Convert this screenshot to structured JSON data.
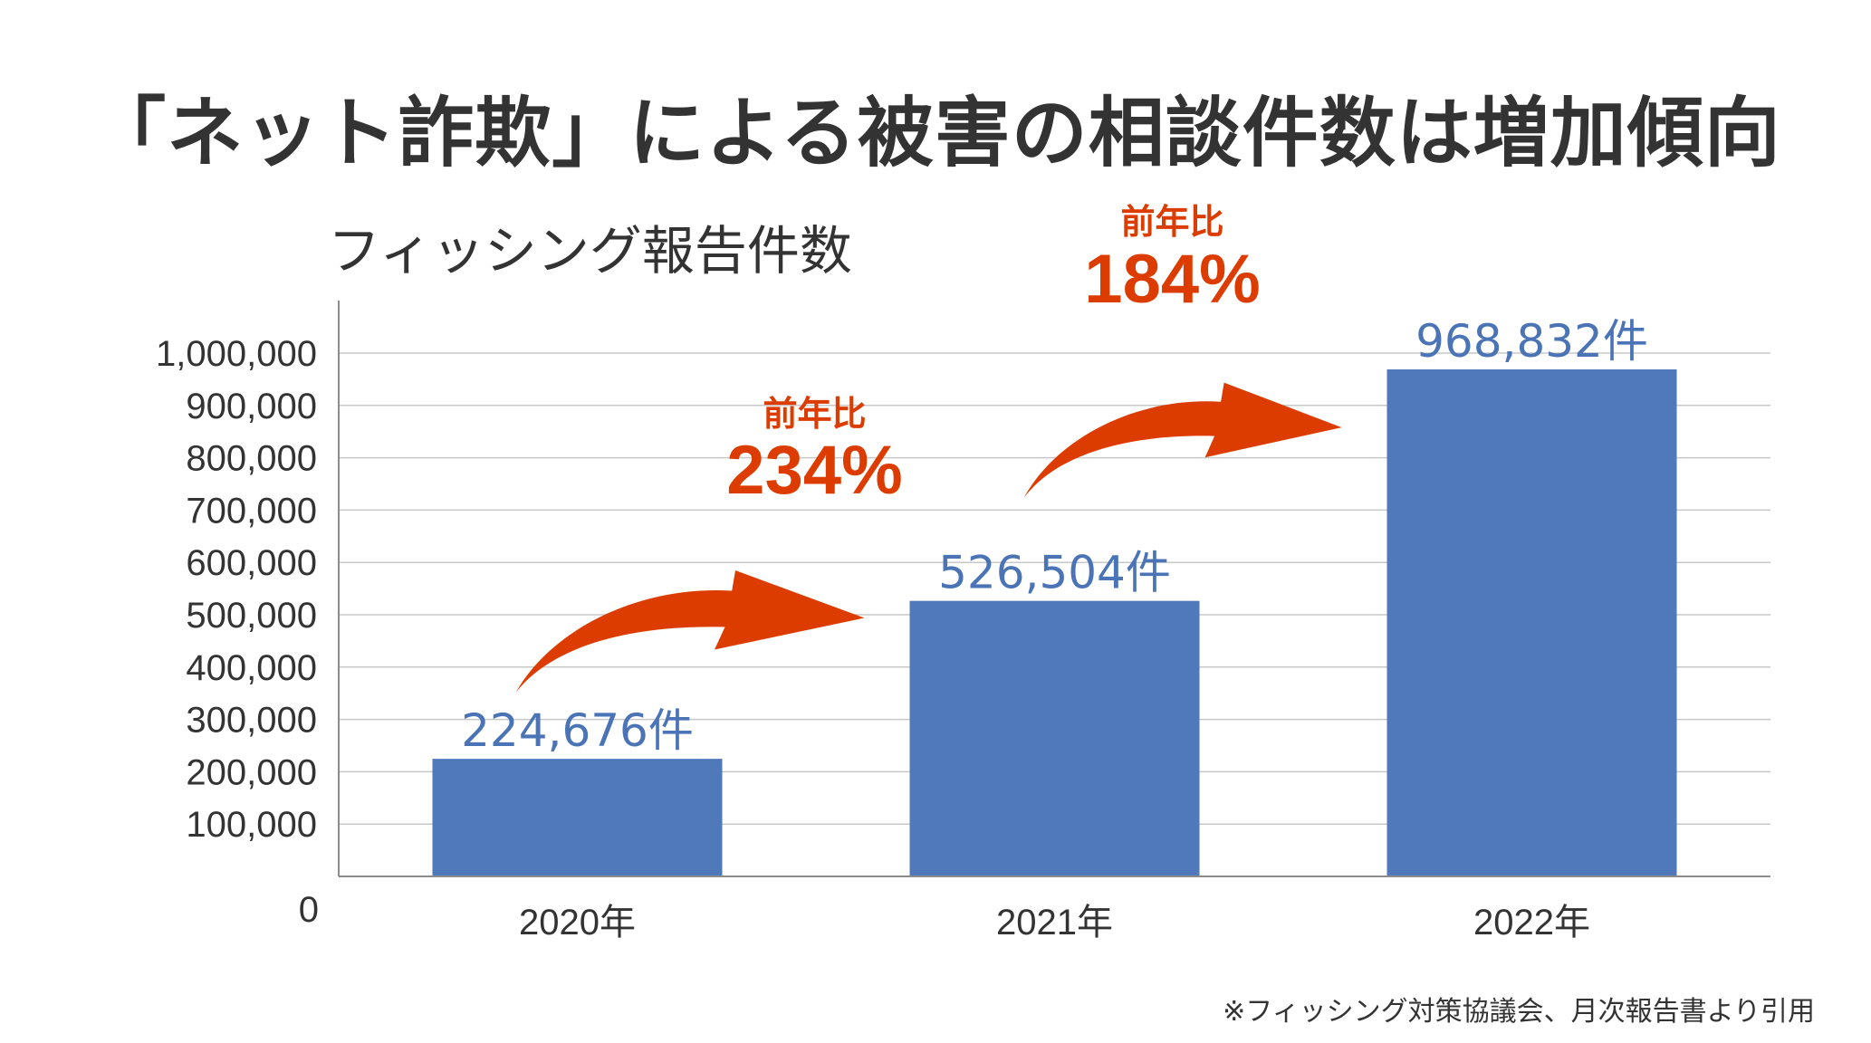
{
  "title": "「ネット詐欺」による被害の相談件数は増加傾向",
  "source": "※フィッシング対策協議会、月次報告書より引用",
  "colors": {
    "bar": "#4f79bb",
    "data_label": "#4a74b6",
    "accent": "#dd3c00",
    "grid": "#c8c8c8",
    "axis": "#8c8c8c",
    "text": "#333333"
  },
  "chart_data": {
    "type": "bar",
    "title": "フィッシング報告件数",
    "xlabel": "",
    "ylabel": "",
    "categories": [
      "2020年",
      "2021年",
      "2022年"
    ],
    "values": [
      224676,
      526504,
      968832
    ],
    "data_labels": [
      "224,676件",
      "526,504件",
      "968,832件"
    ],
    "ylim": [
      0,
      1000000
    ],
    "yticks": [
      0,
      100000,
      200000,
      300000,
      400000,
      500000,
      600000,
      700000,
      800000,
      900000,
      1000000
    ],
    "ytick_labels": [
      "0",
      "100,000",
      "200,000",
      "300,000",
      "400,000",
      "500,000",
      "600,000",
      "700,000",
      "800,000",
      "900,000",
      "1,000,000"
    ],
    "grid": true,
    "legend": "none",
    "annotations": [
      {
        "from": "2020年",
        "to": "2021年",
        "label": "前年比",
        "value": "234%"
      },
      {
        "from": "2021年",
        "to": "2022年",
        "label": "前年比",
        "value": "184%"
      }
    ]
  }
}
